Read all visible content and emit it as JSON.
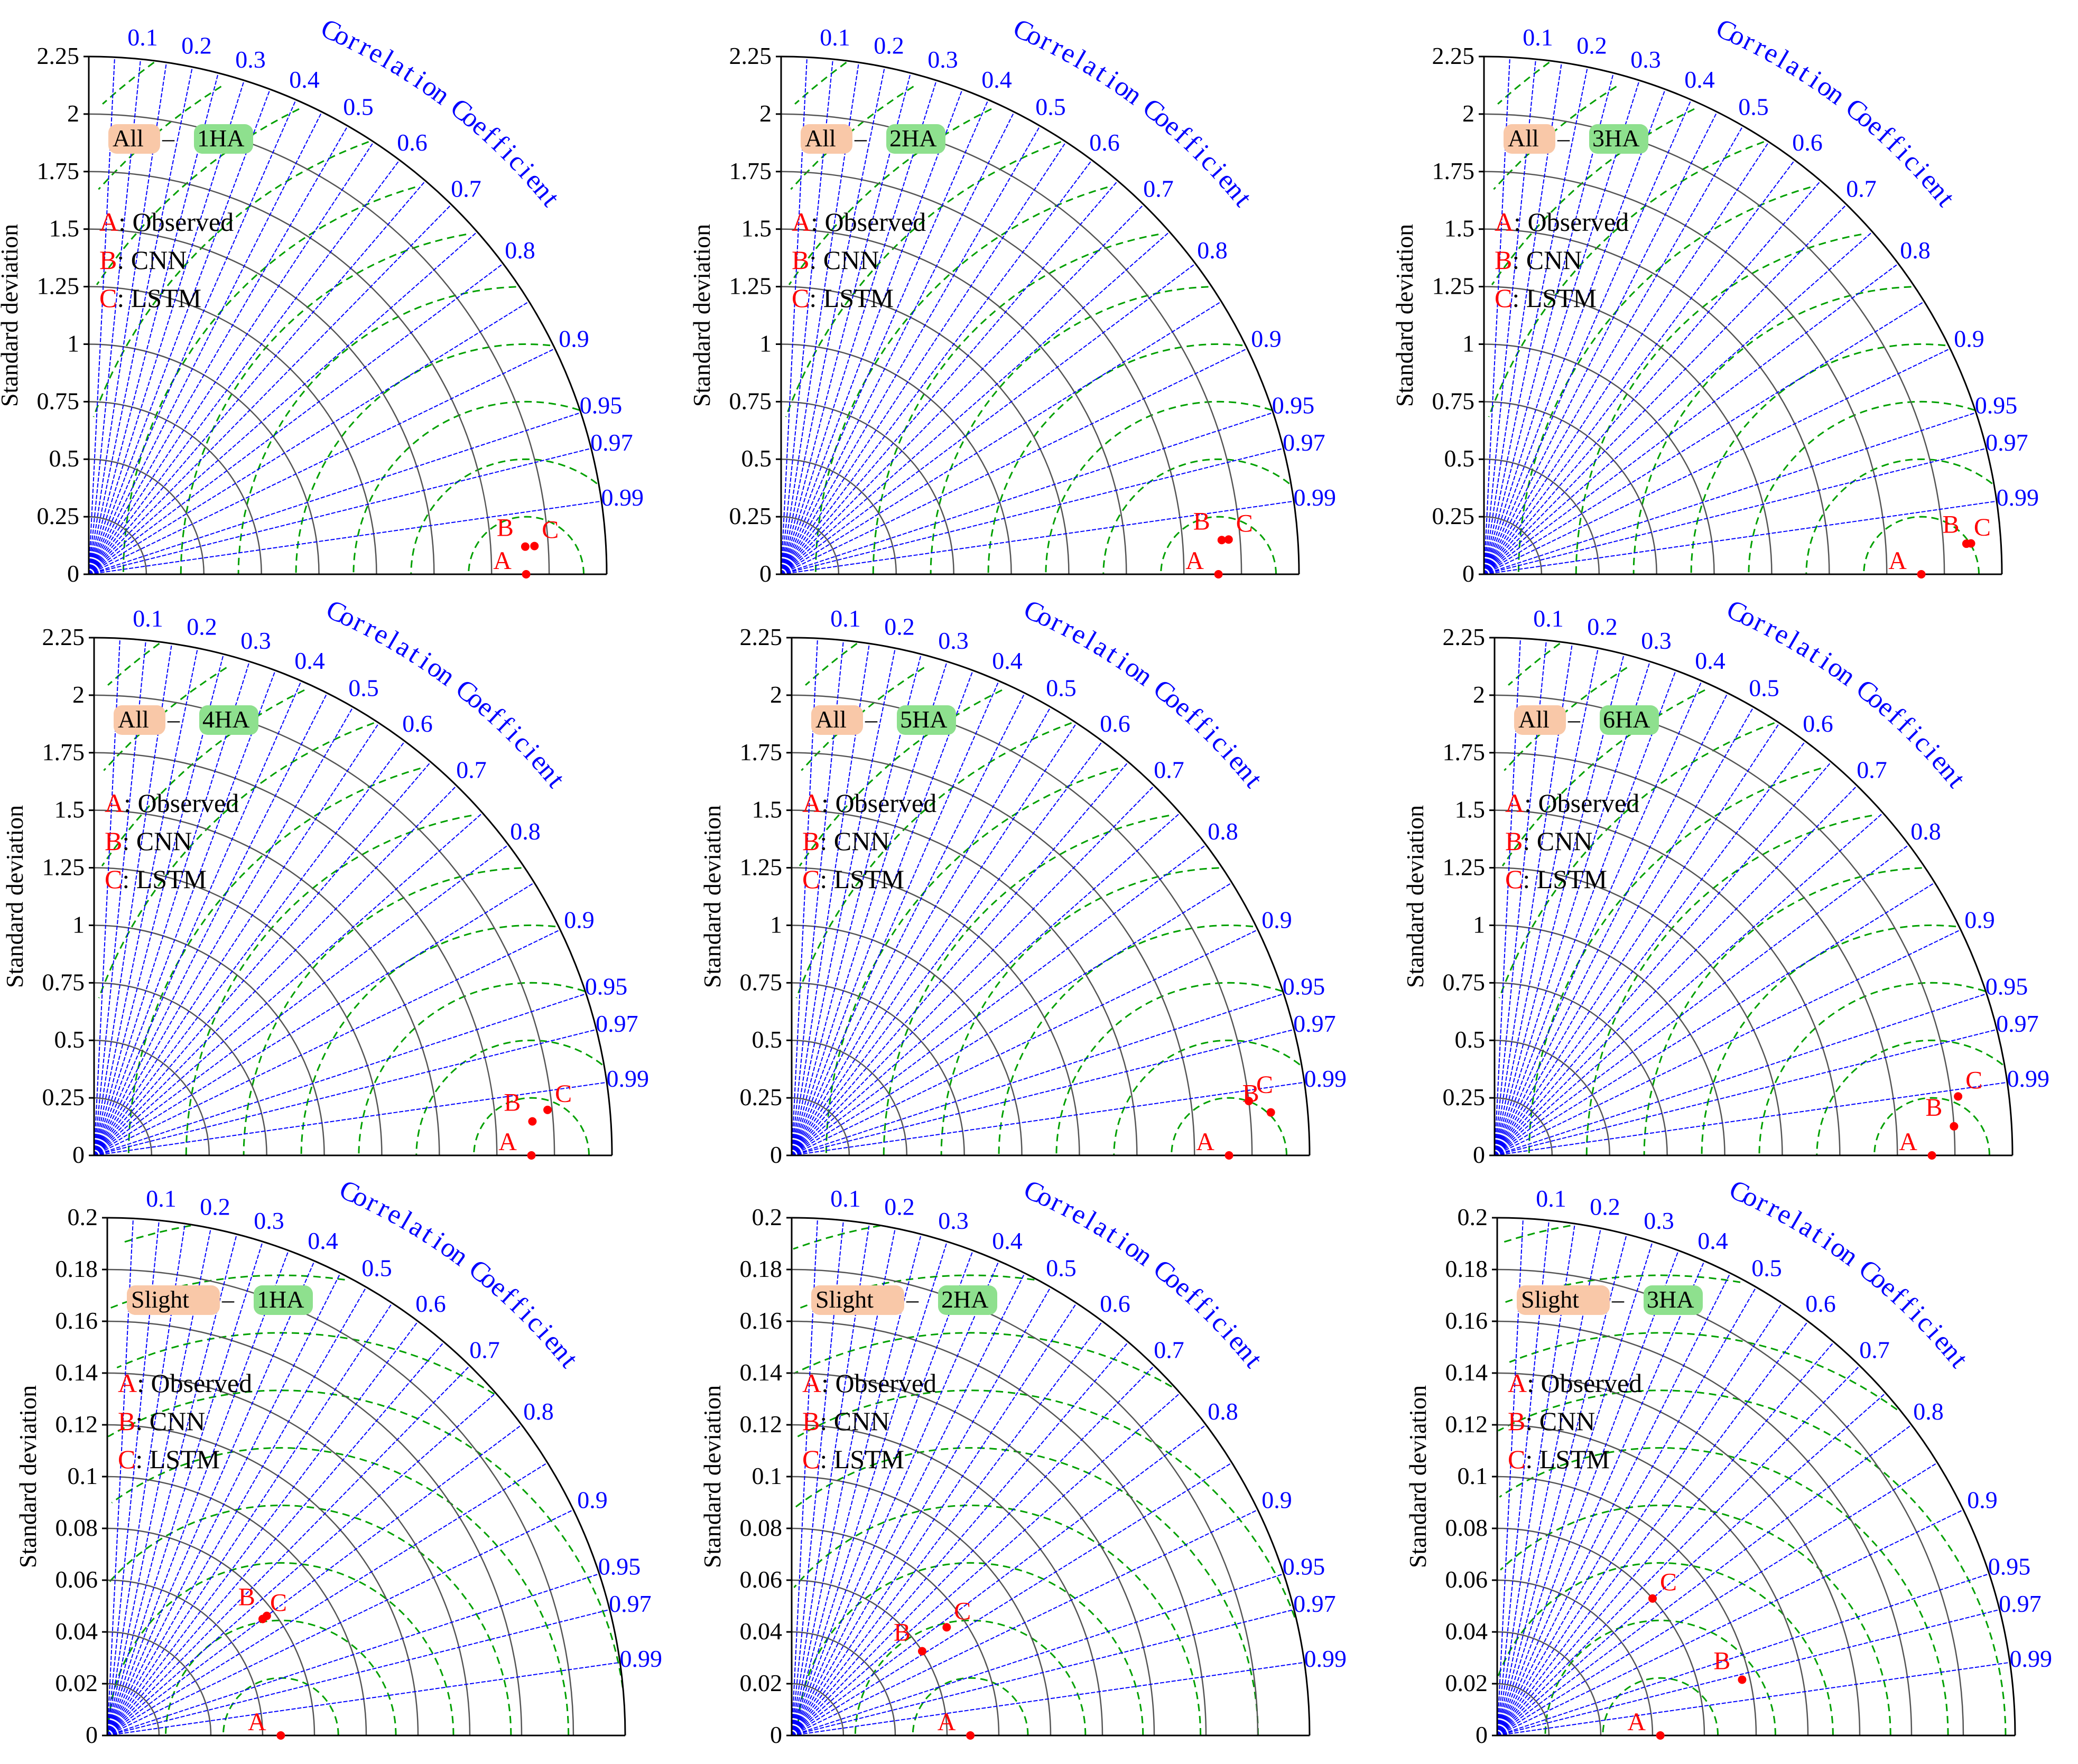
{
  "common": {
    "ylabel": "Standard deviation",
    "corr_title": "Correlation Coefficient",
    "corr_ticks": [
      0.1,
      0.2,
      0.3,
      0.4,
      0.5,
      0.6,
      0.7,
      0.8,
      0.9,
      0.95,
      0.97,
      0.99
    ],
    "legend": [
      {
        "letter": "A",
        "text": ": Observed"
      },
      {
        "letter": "B",
        "text": ": CNN"
      },
      {
        "letter": "C",
        "text": ": LSTM"
      }
    ],
    "colors": {
      "axis": "#000000",
      "grid_std": "#555555",
      "corr_lines": "#0000ff",
      "rms": "#00a000",
      "points": "#ff0000",
      "tag_left": "#f9c8a8",
      "tag_right": "#8ee08e"
    }
  },
  "chart_data": [
    {
      "type": "taylor",
      "tag_left": "All",
      "tag_sep": " – ",
      "tag_right": "1HA",
      "ylim": [
        0,
        2.25
      ],
      "yticks": [
        "0",
        "0.25",
        "0.5",
        "0.75",
        "1",
        "1.25",
        "1.5",
        "1.75",
        "2",
        "2.25"
      ],
      "points": [
        {
          "label": "A",
          "std": 1.9,
          "corr": 1.0
        },
        {
          "label": "B",
          "std": 1.9,
          "corr": 0.998
        },
        {
          "label": "C",
          "std": 1.94,
          "corr": 0.998
        }
      ]
    },
    {
      "type": "taylor",
      "tag_left": "All",
      "tag_sep": " – ",
      "tag_right": "2HA",
      "ylim": [
        0,
        2.25
      ],
      "yticks": [
        "0",
        "0.25",
        "0.5",
        "0.75",
        "1",
        "1.25",
        "1.5",
        "1.75",
        "2",
        "2.25"
      ],
      "points": [
        {
          "label": "A",
          "std": 1.9,
          "corr": 1.0
        },
        {
          "label": "B",
          "std": 1.92,
          "corr": 0.997
        },
        {
          "label": "C",
          "std": 1.95,
          "corr": 0.997
        }
      ]
    },
    {
      "type": "taylor",
      "tag_left": "All",
      "tag_sep": " – ",
      "tag_right": "3HA",
      "ylim": [
        0,
        2.25
      ],
      "yticks": [
        "0",
        "0.25",
        "0.5",
        "0.75",
        "1",
        "1.25",
        "1.5",
        "1.75",
        "2",
        "2.25"
      ],
      "points": [
        {
          "label": "A",
          "std": 1.9,
          "corr": 1.0
        },
        {
          "label": "B",
          "std": 2.12,
          "corr": 0.998
        },
        {
          "label": "C",
          "std": 2.1,
          "corr": 0.998
        }
      ]
    },
    {
      "type": "taylor",
      "tag_left": "All",
      "tag_sep": " – ",
      "tag_right": "4HA",
      "ylim": [
        0,
        2.25
      ],
      "yticks": [
        "0",
        "0.25",
        "0.5",
        "0.75",
        "1",
        "1.25",
        "1.5",
        "1.75",
        "2",
        "2.25"
      ],
      "points": [
        {
          "label": "A",
          "std": 1.9,
          "corr": 1.0
        },
        {
          "label": "B",
          "std": 1.91,
          "corr": 0.997
        },
        {
          "label": "C",
          "std": 1.98,
          "corr": 0.995
        }
      ]
    },
    {
      "type": "taylor",
      "tag_left": "All",
      "tag_sep": " – ",
      "tag_right": "5HA",
      "ylim": [
        0,
        2.25
      ],
      "yticks": [
        "0",
        "0.25",
        "0.5",
        "0.75",
        "1",
        "1.25",
        "1.5",
        "1.75",
        "2",
        "2.25"
      ],
      "points": [
        {
          "label": "A",
          "std": 1.9,
          "corr": 1.0
        },
        {
          "label": "B",
          "std": 2.09,
          "corr": 0.996
        },
        {
          "label": "C",
          "std": 2.0,
          "corr": 0.993
        }
      ]
    },
    {
      "type": "taylor",
      "tag_left": "All",
      "tag_sep": " – ",
      "tag_right": "6HA",
      "ylim": [
        0,
        2.25
      ],
      "yticks": [
        "0",
        "0.25",
        "0.5",
        "0.75",
        "1",
        "1.25",
        "1.5",
        "1.75",
        "2",
        "2.25"
      ],
      "points": [
        {
          "label": "A",
          "std": 1.9,
          "corr": 1.0
        },
        {
          "label": "B",
          "std": 2.0,
          "corr": 0.998
        },
        {
          "label": "C",
          "std": 2.03,
          "corr": 0.992
        }
      ]
    },
    {
      "type": "taylor",
      "tag_left": "Slight",
      "tag_sep": " – ",
      "tag_right": "1HA",
      "ylim": [
        0,
        0.2
      ],
      "yticks": [
        "0",
        "0.02",
        "0.04",
        "0.06",
        "0.08",
        "0.1",
        "0.12",
        "0.14",
        "0.16",
        "0.18",
        "0.2"
      ],
      "points": [
        {
          "label": "A",
          "std": 0.067,
          "corr": 1.0
        },
        {
          "label": "B",
          "std": 0.077,
          "corr": 0.8
        },
        {
          "label": "C",
          "std": 0.075,
          "corr": 0.8
        }
      ]
    },
    {
      "type": "taylor",
      "tag_left": "Slight",
      "tag_sep": " – ",
      "tag_right": "2HA",
      "ylim": [
        0,
        0.2
      ],
      "yticks": [
        "0",
        "0.02",
        "0.04",
        "0.06",
        "0.08",
        "0.1",
        "0.12",
        "0.14",
        "0.16",
        "0.18",
        "0.2"
      ],
      "points": [
        {
          "label": "A",
          "std": 0.069,
          "corr": 1.0
        },
        {
          "label": "B",
          "std": 0.06,
          "corr": 0.84
        },
        {
          "label": "C",
          "std": 0.073,
          "corr": 0.82
        }
      ]
    },
    {
      "type": "taylor",
      "tag_left": "Slight",
      "tag_sep": " – ",
      "tag_right": "3HA",
      "ylim": [
        0,
        0.2
      ],
      "yticks": [
        "0",
        "0.02",
        "0.04",
        "0.06",
        "0.08",
        "0.1",
        "0.12",
        "0.14",
        "0.16",
        "0.18",
        "0.2"
      ],
      "points": [
        {
          "label": "A",
          "std": 0.063,
          "corr": 1.0
        },
        {
          "label": "B",
          "std": 0.097,
          "corr": 0.975
        },
        {
          "label": "C",
          "std": 0.08,
          "corr": 0.75
        }
      ]
    }
  ]
}
